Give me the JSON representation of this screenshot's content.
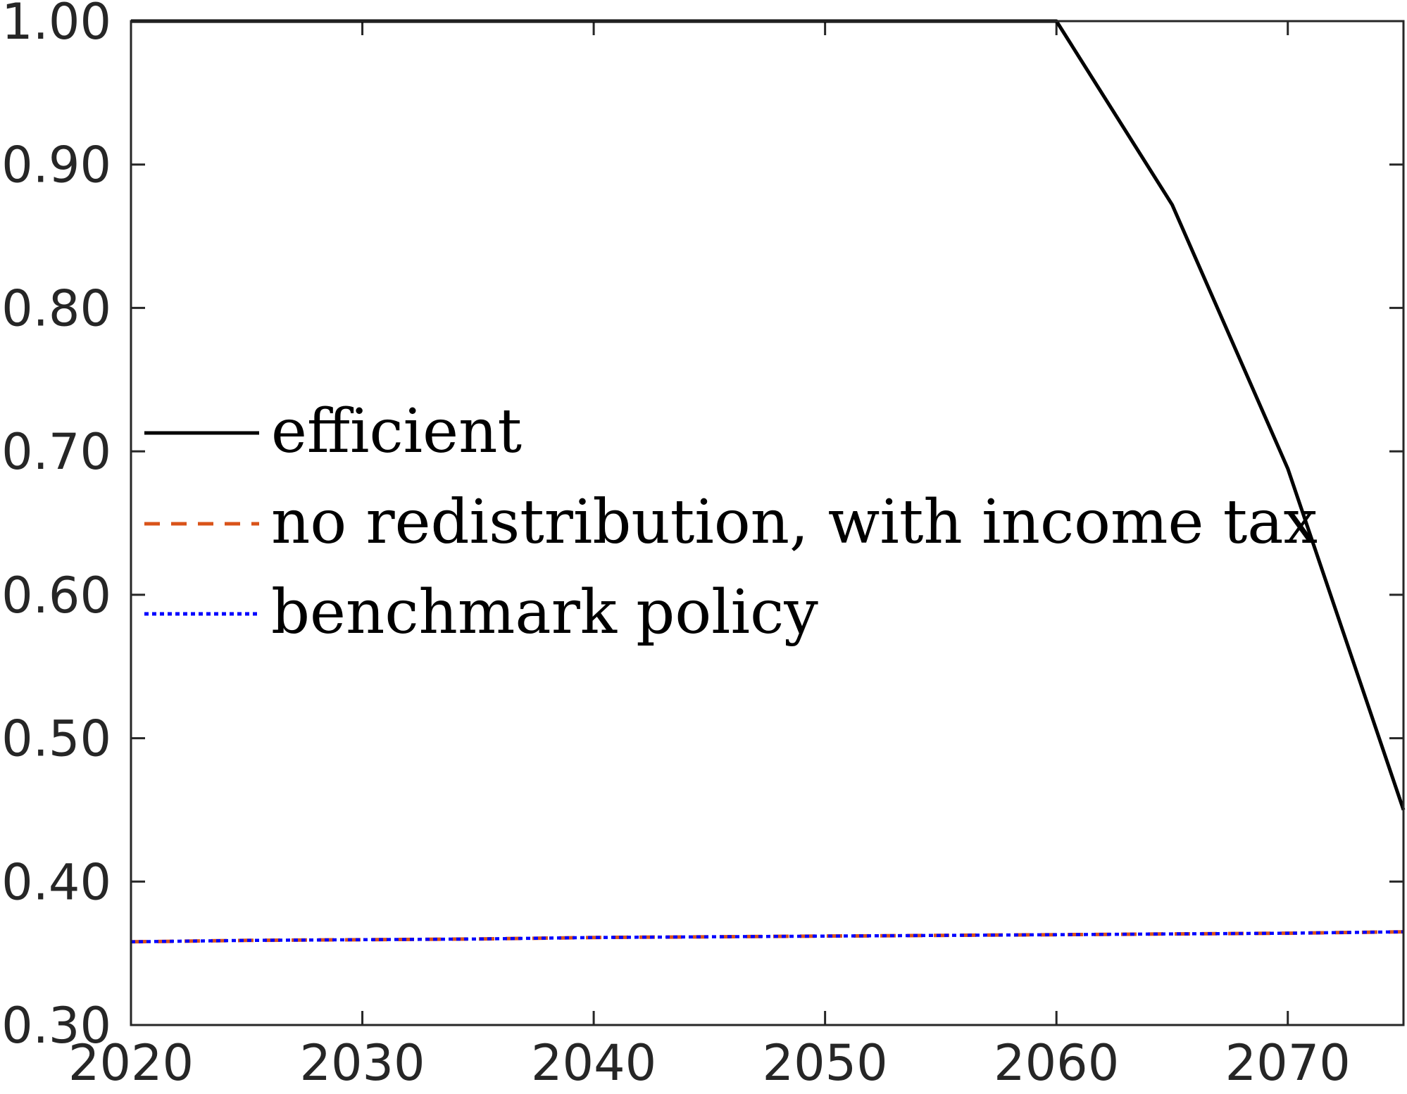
{
  "chart_data": {
    "type": "line",
    "title": "",
    "xlabel": "",
    "ylabel": "",
    "xlim": [
      2020,
      2075
    ],
    "ylim": [
      0.3,
      1.0
    ],
    "grid": false,
    "legend_position": "center-left",
    "x_ticks": [
      {
        "value": 2020,
        "label": "2020"
      },
      {
        "value": 2030,
        "label": "2030"
      },
      {
        "value": 2040,
        "label": "2040"
      },
      {
        "value": 2050,
        "label": "2050"
      },
      {
        "value": 2060,
        "label": "2060"
      },
      {
        "value": 2070,
        "label": "2070"
      }
    ],
    "y_ticks": [
      {
        "value": 0.3,
        "label": "0.30"
      },
      {
        "value": 0.4,
        "label": "0.40"
      },
      {
        "value": 0.5,
        "label": "0.50"
      },
      {
        "value": 0.6,
        "label": "0.60"
      },
      {
        "value": 0.7,
        "label": "0.70"
      },
      {
        "value": 0.8,
        "label": "0.80"
      },
      {
        "value": 0.9,
        "label": "0.90"
      },
      {
        "value": 1.0,
        "label": "1.00"
      }
    ],
    "series": [
      {
        "name": "efficient",
        "color": "#000000",
        "line_style": "solid",
        "x": [
          2020,
          2025,
          2030,
          2035,
          2040,
          2045,
          2050,
          2055,
          2060,
          2065,
          2070,
          2075
        ],
        "y": [
          1.0,
          1.0,
          1.0,
          1.0,
          1.0,
          1.0,
          1.0,
          1.0,
          1.0,
          0.872,
          0.688,
          0.45
        ]
      },
      {
        "name": "no redistribution, with income tax",
        "color": "#D95319",
        "line_style": "dashed",
        "x": [
          2020,
          2025,
          2030,
          2035,
          2040,
          2045,
          2050,
          2055,
          2060,
          2065,
          2070,
          2075
        ],
        "y": [
          0.358,
          0.359,
          0.3595,
          0.36,
          0.361,
          0.3615,
          0.362,
          0.3625,
          0.363,
          0.3635,
          0.364,
          0.365
        ]
      },
      {
        "name": "benchmark policy",
        "color": "#0000FF",
        "line_style": "dotted",
        "x": [
          2020,
          2025,
          2030,
          2035,
          2040,
          2045,
          2050,
          2055,
          2060,
          2065,
          2070,
          2075
        ],
        "y": [
          0.358,
          0.359,
          0.3595,
          0.36,
          0.361,
          0.3615,
          0.362,
          0.3625,
          0.363,
          0.3635,
          0.364,
          0.365
        ]
      }
    ]
  }
}
